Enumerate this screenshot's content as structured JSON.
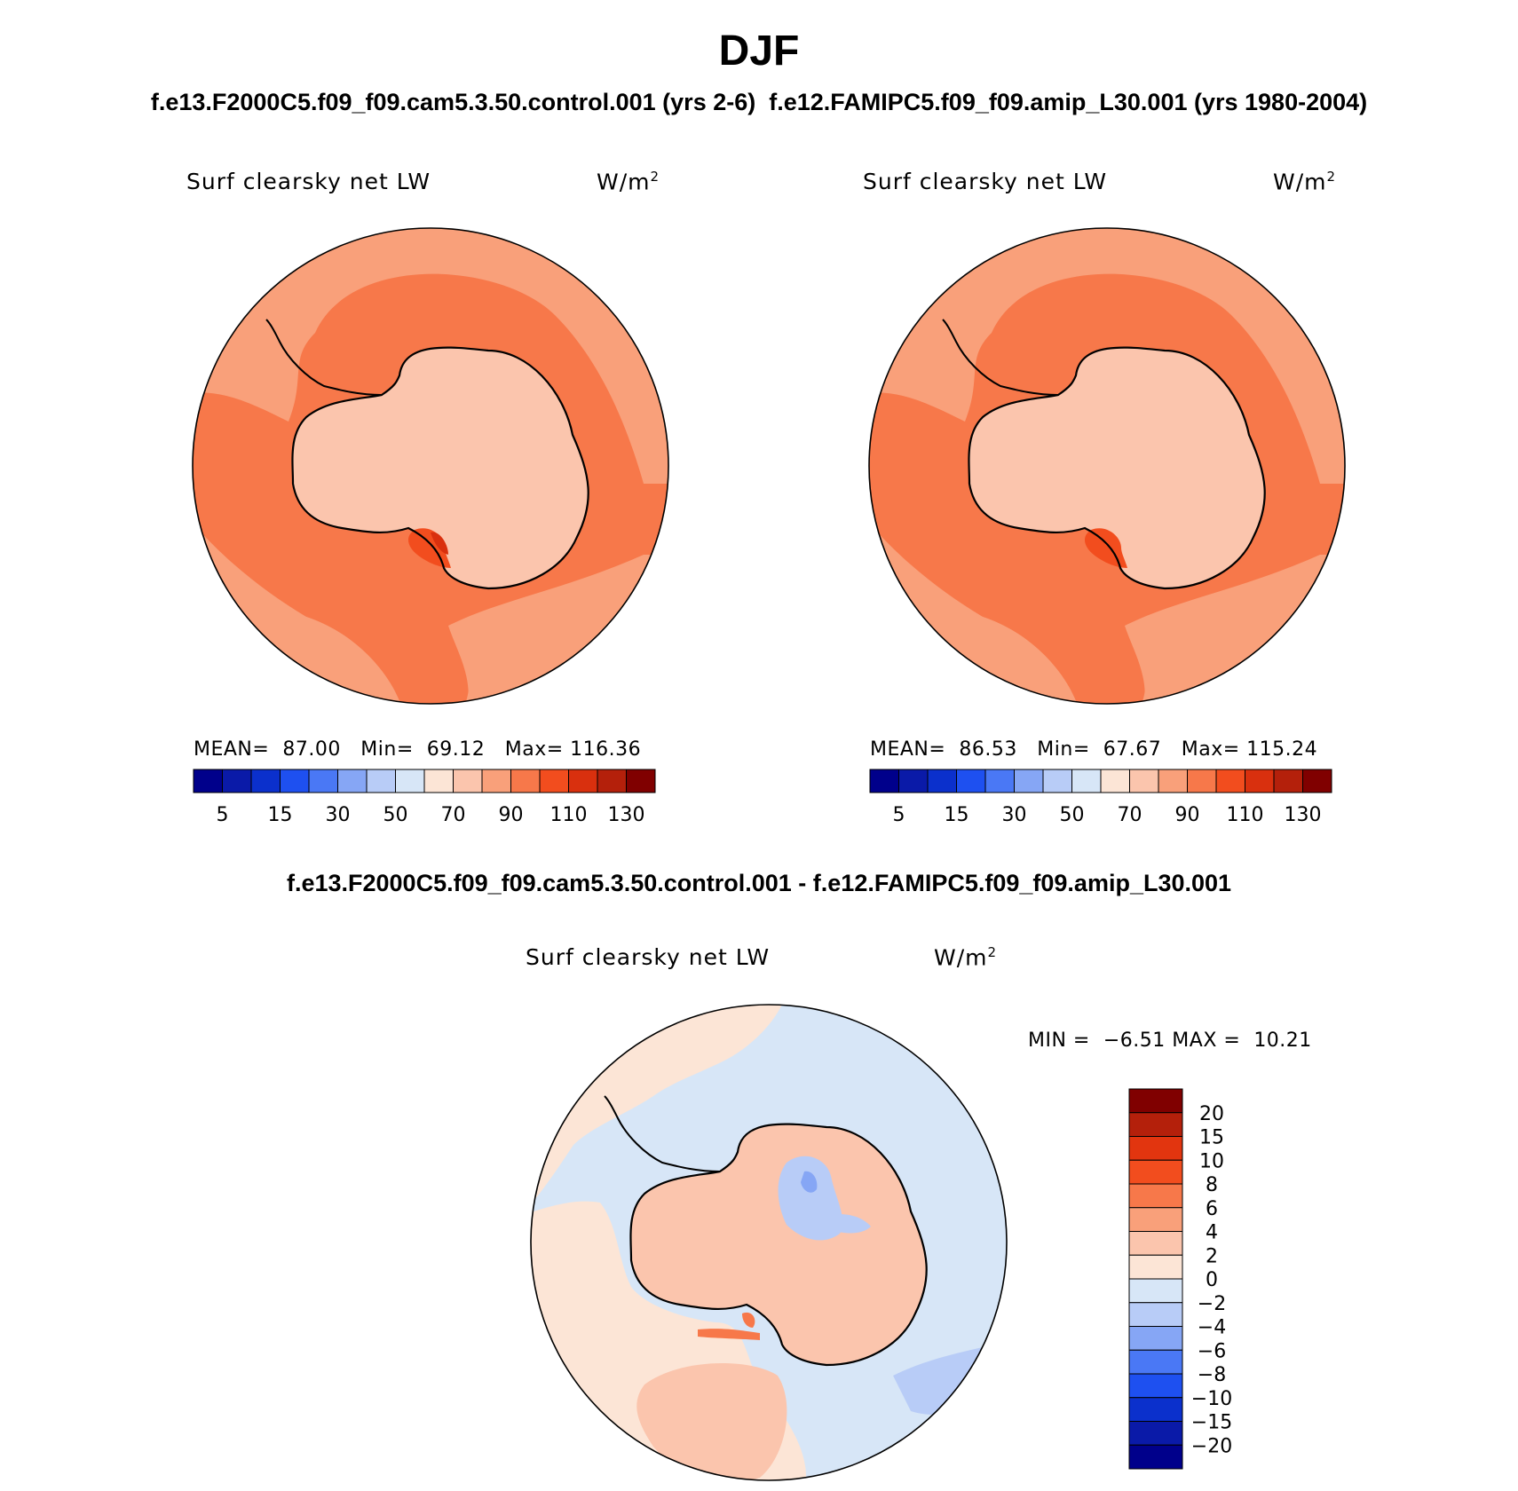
{
  "season": "DJF",
  "header": {
    "case_left": "f.e13.F2000C5.f09_f09.cam5.3.50.control.001 (yrs 2-6)",
    "case_right": "f.e12.FAMIPC5.f09_f09.amip_L30.001 (yrs 1980-2004)",
    "diff_title": "f.e13.F2000C5.f09_f09.cam5.3.50.control.001 - f.e12.FAMIPC5.f09_f09.amip_L30.001"
  },
  "panels": [
    {
      "variable": "Surf clearsky net LW",
      "units": "W/m",
      "units_sup": "2",
      "stats": {
        "mean_label": "MEAN=",
        "mean": "87.00",
        "min_label": "Min=",
        "min": "69.12",
        "max_label": "Max=",
        "max": "116.36"
      }
    },
    {
      "variable": "Surf clearsky net LW",
      "units": "W/m",
      "units_sup": "2",
      "stats": {
        "mean_label": "MEAN=",
        "mean": "86.53",
        "min_label": "Min=",
        "min": "67.67",
        "max_label": "Max=",
        "max": "115.24"
      }
    }
  ],
  "diff_panel": {
    "variable": "Surf clearsky net LW",
    "units": "W/m",
    "units_sup": "2",
    "min_label": "MIN =",
    "min": "−6.51",
    "max_label": "MAX =",
    "max": "10.21"
  },
  "colorbar_main": {
    "colors": [
      "#00008b",
      "#0a1aa8",
      "#0b30cc",
      "#1e50f0",
      "#4a78f5",
      "#86a6f5",
      "#b8ccf7",
      "#d7e6f7",
      "#fce5d6",
      "#fbc5ad",
      "#f9a07a",
      "#f7784a",
      "#f24d1e",
      "#d9300e",
      "#b4200b",
      "#800000"
    ],
    "tick_labels": [
      "5",
      "15",
      "30",
      "50",
      "70",
      "90",
      "110",
      "130"
    ]
  },
  "colorbar_diff": {
    "colors": [
      "#800000",
      "#b4200b",
      "#e2350f",
      "#f24d1e",
      "#f7784a",
      "#f9a07a",
      "#fbc5ad",
      "#fce5d6",
      "#d7e6f7",
      "#b8ccf7",
      "#86a6f5",
      "#4a78f5",
      "#1e50f0",
      "#0b30cc",
      "#0a1aa8",
      "#00008b"
    ],
    "tick_labels": [
      "20",
      "15",
      "10",
      "8",
      "6",
      "4",
      "2",
      "0",
      "−2",
      "−4",
      "−6",
      "−8",
      "−10",
      "−15",
      "−20"
    ]
  }
}
